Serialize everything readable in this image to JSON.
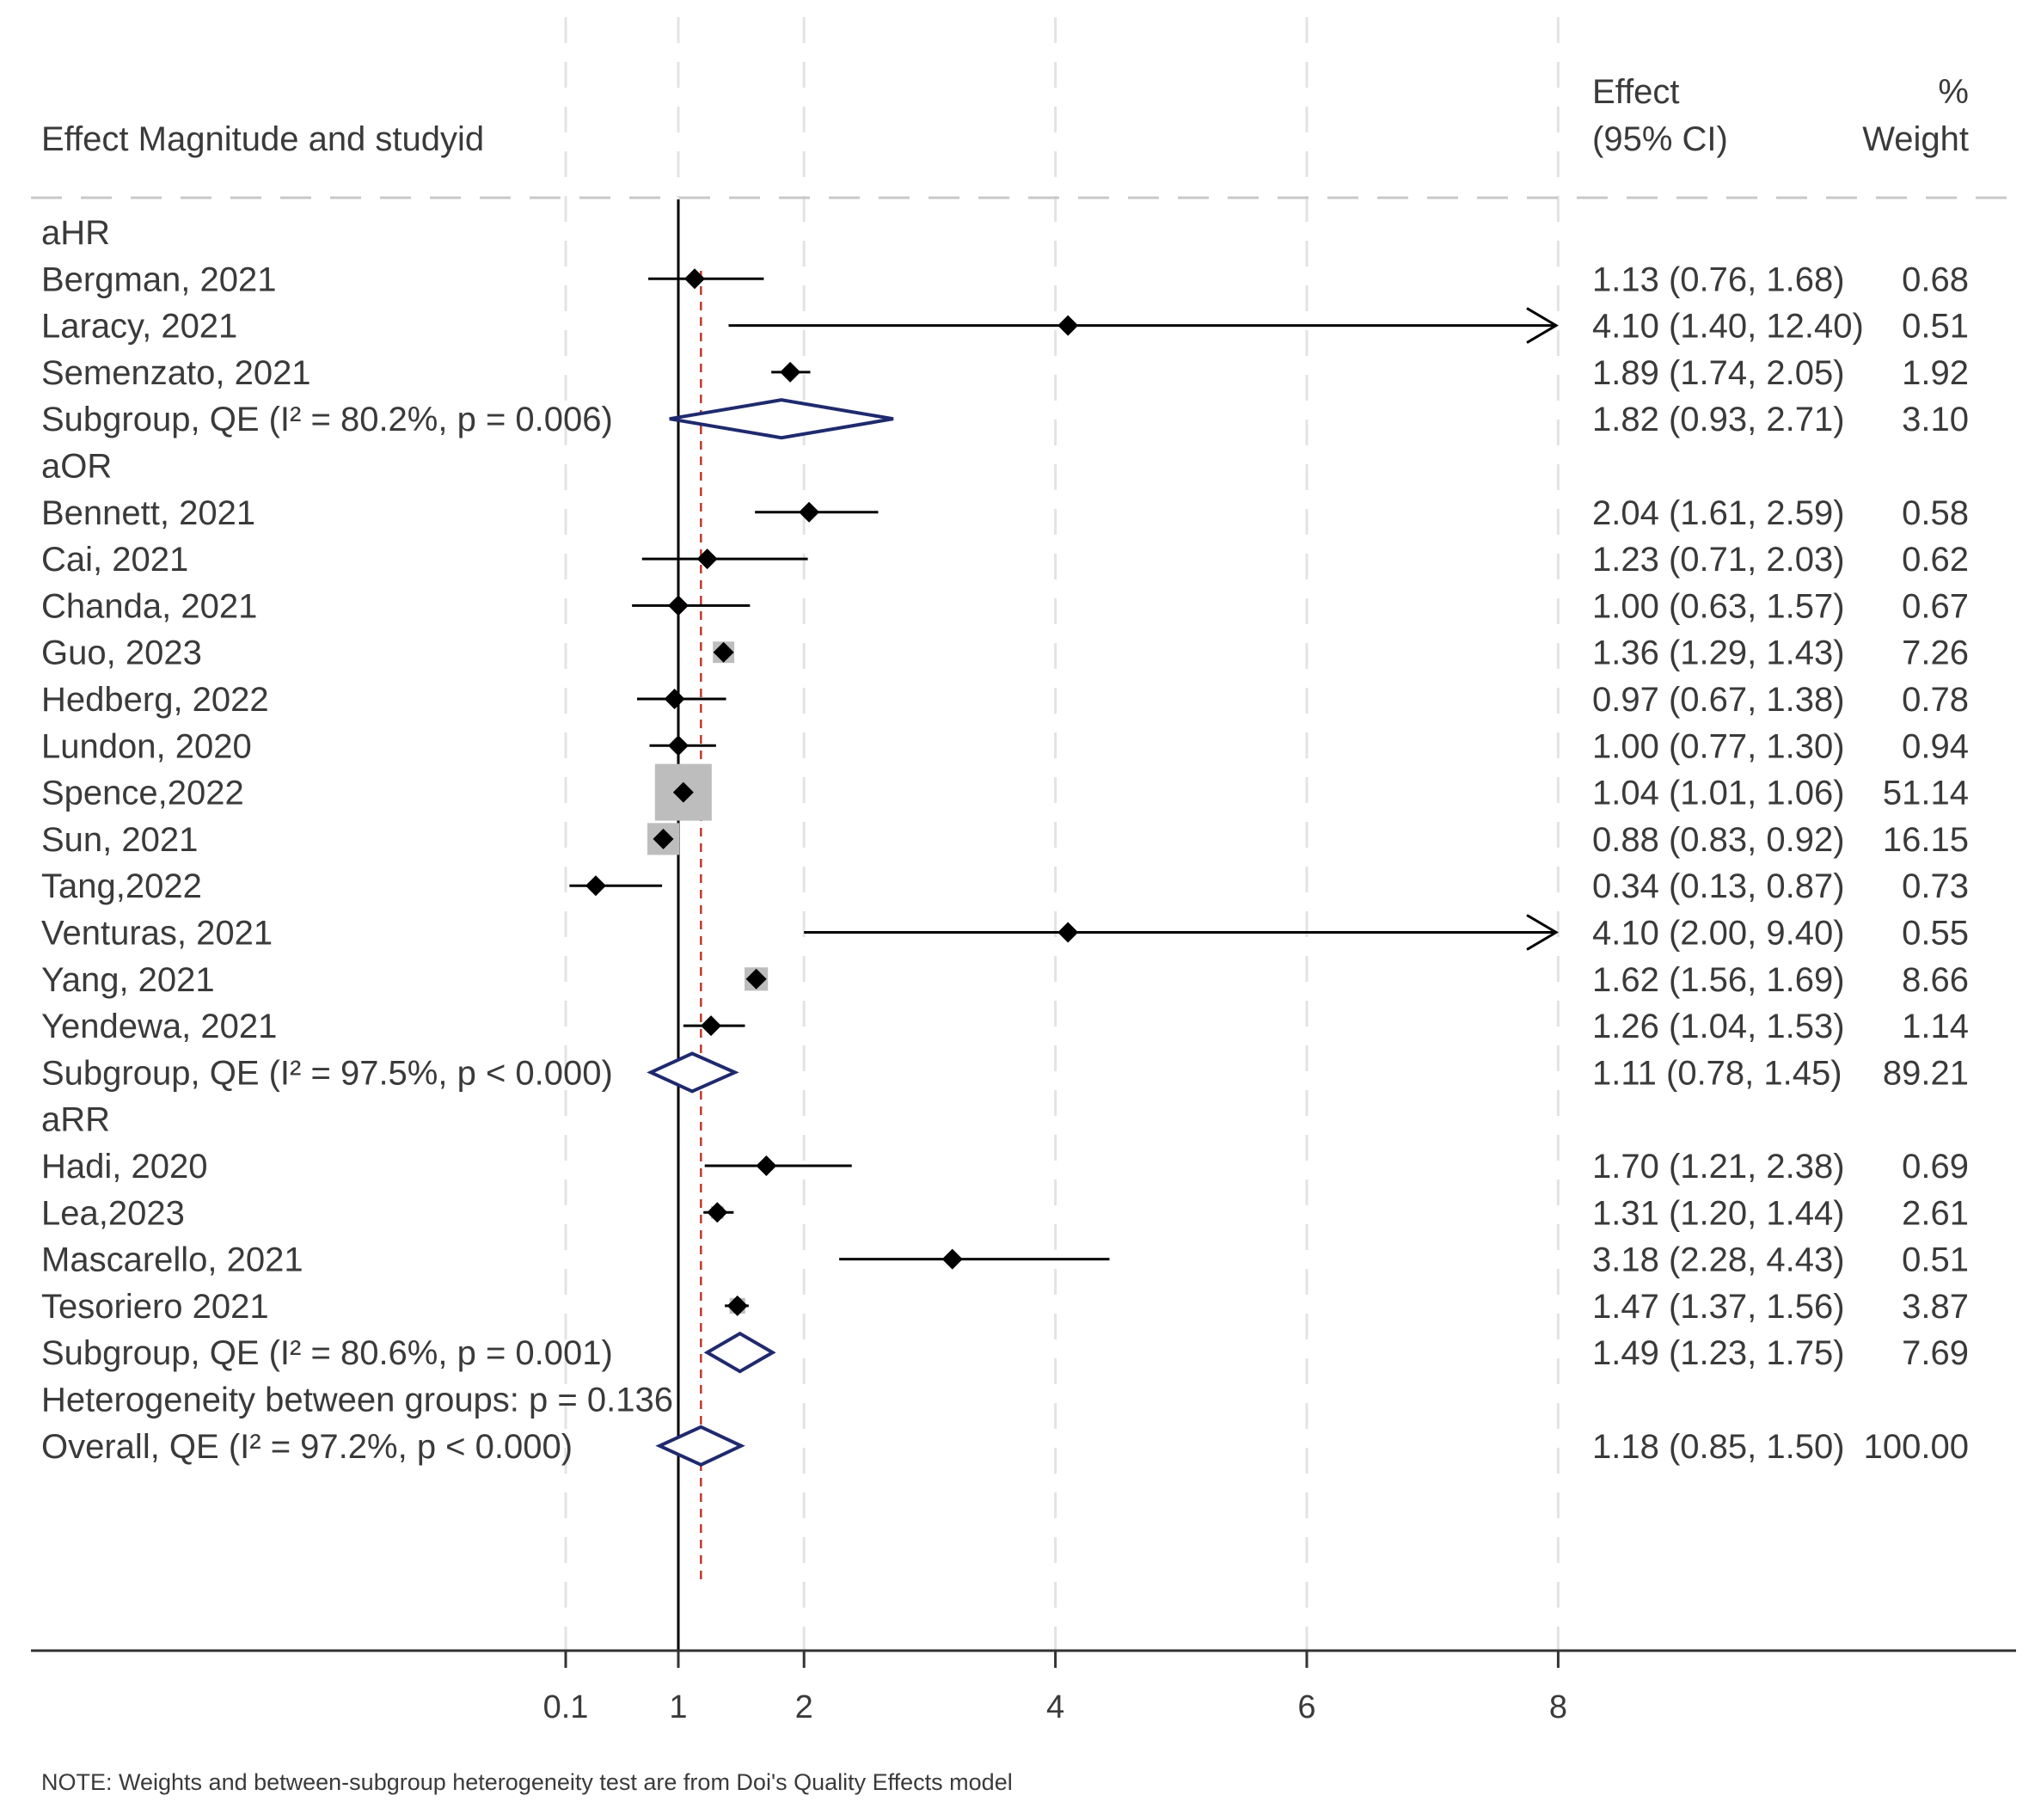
{
  "chart_data": {
    "type": "forest",
    "header": {
      "label_col": "Effect Magnitude and studyid",
      "effect_line1": "Effect",
      "effect_line2": "(95% CI)",
      "weight_line1": "%",
      "weight_line2": "Weight"
    },
    "null_value": 1,
    "overall_effect": 1.18,
    "x_ticks": [
      0.1,
      1,
      2,
      4,
      6,
      8
    ],
    "x_tick_labels": [
      "0.1",
      "1",
      "2",
      "4",
      "6",
      "8"
    ],
    "xlim": [
      0.1,
      8
    ],
    "rows": [
      {
        "kind": "group",
        "label": "aHR"
      },
      {
        "kind": "study",
        "label": "Bergman, 2021",
        "effect": 1.13,
        "lo": 0.76,
        "hi": 1.68,
        "weight": 0.68,
        "ci_text": "1.13 (0.76, 1.68)",
        "weight_text": "0.68"
      },
      {
        "kind": "study",
        "label": "Laracy, 2021",
        "effect": 4.1,
        "lo": 1.4,
        "hi": 12.4,
        "weight": 0.51,
        "ci_text": "4.10 (1.40, 12.40)",
        "weight_text": "0.51"
      },
      {
        "kind": "study",
        "label": "Semenzato, 2021",
        "effect": 1.89,
        "lo": 1.74,
        "hi": 2.05,
        "weight": 1.92,
        "ci_text": "1.89 (1.74, 2.05)",
        "weight_text": "1.92"
      },
      {
        "kind": "subgroup",
        "label": "Subgroup, QE (I² = 80.2%, p = 0.006)",
        "effect": 1.82,
        "lo": 0.93,
        "hi": 2.71,
        "ci_text": "1.82 (0.93, 2.71)",
        "weight_text": "3.10"
      },
      {
        "kind": "group",
        "label": "aOR"
      },
      {
        "kind": "study",
        "label": "Bennett, 2021",
        "effect": 2.04,
        "lo": 1.61,
        "hi": 2.59,
        "weight": 0.58,
        "ci_text": "2.04 (1.61, 2.59)",
        "weight_text": "0.58"
      },
      {
        "kind": "study",
        "label": "Cai, 2021",
        "effect": 1.23,
        "lo": 0.71,
        "hi": 2.03,
        "weight": 0.62,
        "ci_text": "1.23 (0.71, 2.03)",
        "weight_text": "0.62"
      },
      {
        "kind": "study",
        "label": "Chanda, 2021",
        "effect": 1.0,
        "lo": 0.63,
        "hi": 1.57,
        "weight": 0.67,
        "ci_text": "1.00 (0.63, 1.57)",
        "weight_text": "0.67"
      },
      {
        "kind": "study",
        "label": "Guo, 2023",
        "effect": 1.36,
        "lo": 1.29,
        "hi": 1.43,
        "weight": 7.26,
        "ci_text": "1.36 (1.29, 1.43)",
        "weight_text": "7.26"
      },
      {
        "kind": "study",
        "label": "Hedberg, 2022",
        "effect": 0.97,
        "lo": 0.67,
        "hi": 1.38,
        "weight": 0.78,
        "ci_text": "0.97 (0.67, 1.38)",
        "weight_text": "0.78"
      },
      {
        "kind": "study",
        "label": "Lundon, 2020",
        "effect": 1.0,
        "lo": 0.77,
        "hi": 1.3,
        "weight": 0.94,
        "ci_text": "1.00 (0.77, 1.30)",
        "weight_text": "0.94"
      },
      {
        "kind": "study",
        "label": "Spence,2022",
        "effect": 1.04,
        "lo": 1.01,
        "hi": 1.06,
        "weight": 51.14,
        "ci_text": "1.04 (1.01, 1.06)",
        "weight_text": "51.14"
      },
      {
        "kind": "study",
        "label": "Sun, 2021",
        "effect": 0.88,
        "lo": 0.83,
        "hi": 0.92,
        "weight": 16.15,
        "ci_text": "0.88 (0.83, 0.92)",
        "weight_text": "16.15"
      },
      {
        "kind": "study",
        "label": "Tang,2022",
        "effect": 0.34,
        "lo": 0.13,
        "hi": 0.87,
        "weight": 0.73,
        "ci_text": "0.34 (0.13, 0.87)",
        "weight_text": "0.73"
      },
      {
        "kind": "study",
        "label": "Venturas, 2021",
        "effect": 4.1,
        "lo": 2.0,
        "hi": 9.4,
        "weight": 0.55,
        "ci_text": "4.10 (2.00, 9.40)",
        "weight_text": "0.55"
      },
      {
        "kind": "study",
        "label": "Yang, 2021",
        "effect": 1.62,
        "lo": 1.56,
        "hi": 1.69,
        "weight": 8.66,
        "ci_text": "1.62 (1.56, 1.69)",
        "weight_text": "8.66"
      },
      {
        "kind": "study",
        "label": "Yendewa, 2021",
        "effect": 1.26,
        "lo": 1.04,
        "hi": 1.53,
        "weight": 1.14,
        "ci_text": "1.26 (1.04, 1.53)",
        "weight_text": "1.14"
      },
      {
        "kind": "subgroup",
        "label": "Subgroup, QE (I² = 97.5%, p < 0.000)",
        "effect": 1.11,
        "lo": 0.78,
        "hi": 1.45,
        "ci_text": "1.11 (0.78, 1.45)",
        "weight_text": "89.21"
      },
      {
        "kind": "group",
        "label": "aRR"
      },
      {
        "kind": "study",
        "label": "Hadi, 2020",
        "effect": 1.7,
        "lo": 1.21,
        "hi": 2.38,
        "weight": 0.69,
        "ci_text": "1.70 (1.21, 2.38)",
        "weight_text": "0.69"
      },
      {
        "kind": "study",
        "label": "Lea,2023",
        "effect": 1.31,
        "lo": 1.2,
        "hi": 1.44,
        "weight": 2.61,
        "ci_text": "1.31 (1.20, 1.44)",
        "weight_text": "2.61"
      },
      {
        "kind": "study",
        "label": "Mascarello, 2021",
        "effect": 3.18,
        "lo": 2.28,
        "hi": 4.43,
        "weight": 0.51,
        "ci_text": "3.18 (2.28, 4.43)",
        "weight_text": "0.51"
      },
      {
        "kind": "study",
        "label": "Tesoriero 2021",
        "effect": 1.47,
        "lo": 1.37,
        "hi": 1.56,
        "weight": 3.87,
        "ci_text": "1.47 (1.37, 1.56)",
        "weight_text": "3.87"
      },
      {
        "kind": "subgroup",
        "label": "Subgroup, QE (I² = 80.6%, p = 0.001)",
        "effect": 1.49,
        "lo": 1.23,
        "hi": 1.75,
        "ci_text": "1.49 (1.23, 1.75)",
        "weight_text": "7.69"
      },
      {
        "kind": "text",
        "label": "Heterogeneity between groups: p = 0.136"
      },
      {
        "kind": "overall",
        "label": "Overall, QE (I² = 97.2%, p < 0.000)",
        "effect": 1.18,
        "lo": 0.85,
        "hi": 1.5,
        "ci_text": "1.18 (0.85, 1.50)",
        "weight_text": "100.00"
      }
    ],
    "note": "NOTE: Weights and between-subgroup heterogeneity test are from Doi's Quality Effects model",
    "colors": {
      "text": "#3a3a3a",
      "marker": "#000000",
      "diamond": "#1f2a6e",
      "weight_box": "#bdbdbd",
      "grid": "#e3e3e3",
      "null_line": "#000000",
      "overall_line": "#c0392b"
    }
  }
}
